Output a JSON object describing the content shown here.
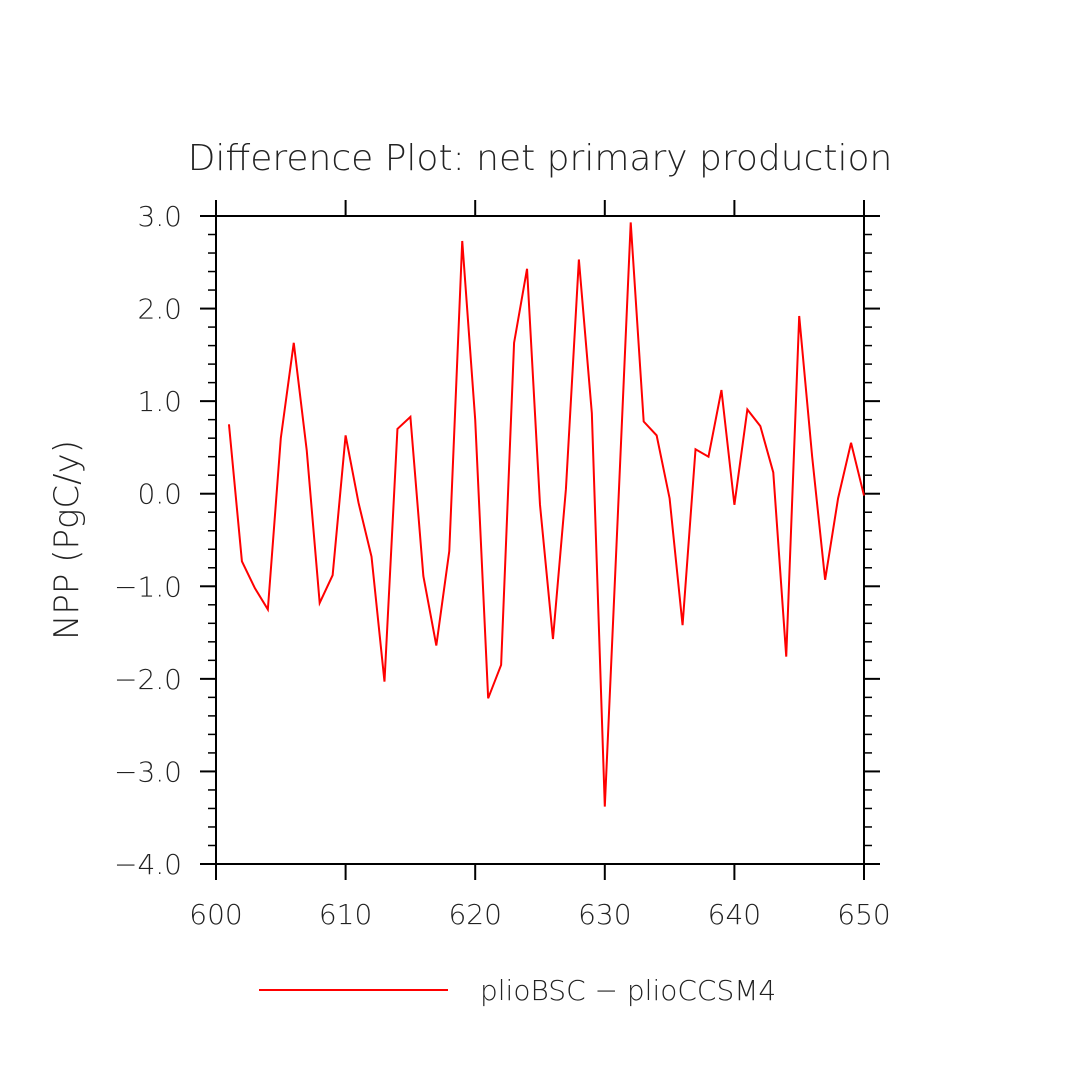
{
  "chart_data": {
    "type": "line",
    "title": "Difference Plot: net primary production",
    "ylabel": "NPP  (PgC/y)",
    "xlabel": "",
    "xlim": [
      600,
      650
    ],
    "ylim": [
      -4.0,
      3.0
    ],
    "x_ticks": [
      600,
      610,
      620,
      630,
      640,
      650
    ],
    "x_tick_labels": [
      "600",
      "610",
      "620",
      "630",
      "640",
      "650"
    ],
    "y_ticks": [
      3.0,
      2.0,
      1.0,
      0.0,
      -1.0,
      -2.0,
      -3.0,
      -4.0
    ],
    "y_tick_labels": [
      "3.0",
      "2.0",
      "1.0",
      "0.0",
      "−1.0",
      "−2.0",
      "−3.0",
      "−4.0"
    ],
    "grid": false,
    "legend_position": "bottom",
    "series": [
      {
        "name": "plioBSC − plioCCSM4",
        "color": "#ff0000",
        "x": [
          601,
          602,
          603,
          604,
          605,
          606,
          607,
          608,
          609,
          610,
          611,
          612,
          613,
          614,
          615,
          616,
          617,
          618,
          619,
          620,
          621,
          622,
          623,
          624,
          625,
          626,
          627,
          628,
          629,
          630,
          631,
          632,
          633,
          634,
          635,
          636,
          637,
          638,
          639,
          640,
          641,
          642,
          643,
          644,
          645,
          646,
          647,
          648,
          649,
          650
        ],
        "values": [
          0.75,
          -0.73,
          -1.02,
          -1.25,
          0.6,
          1.63,
          0.47,
          -1.18,
          -0.88,
          0.63,
          -0.1,
          -0.68,
          -2.03,
          0.7,
          0.83,
          -0.89,
          -1.64,
          -0.62,
          2.73,
          0.8,
          -2.21,
          -1.85,
          1.63,
          2.43,
          -0.12,
          -1.57,
          0.05,
          2.53,
          0.87,
          -3.38,
          -0.25,
          2.93,
          0.78,
          0.63,
          -0.05,
          -1.42,
          0.48,
          0.4,
          1.12,
          -0.12,
          0.91,
          0.73,
          0.23,
          -1.76,
          1.92,
          0.4,
          -0.93,
          -0.05,
          0.55,
          -0.02
        ]
      }
    ]
  }
}
